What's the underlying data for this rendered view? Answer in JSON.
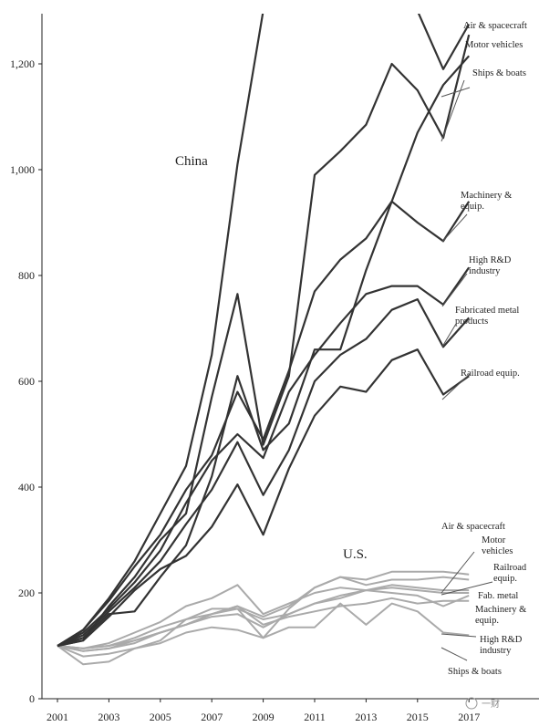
{
  "chart_data": {
    "type": "line",
    "title": "",
    "xlabel": "",
    "ylabel": "",
    "x": [
      2001,
      2002,
      2003,
      2004,
      2005,
      2006,
      2007,
      2008,
      2009,
      2010,
      2011,
      2012,
      2013,
      2014,
      2015,
      2016,
      2017
    ],
    "x_ticks": [
      "2001",
      "2003",
      "2005",
      "2007",
      "2009",
      "2011",
      "2013",
      "2015",
      "2017"
    ],
    "y_ticks": [
      "0",
      "200",
      "400",
      "600",
      "800",
      "1,000",
      "1,200"
    ],
    "xlim": [
      2001,
      2017.7
    ],
    "ylim": [
      0,
      1300
    ],
    "grid": false,
    "legend": "none",
    "groups": [
      {
        "name": "China",
        "color": "#333333",
        "series": [
          {
            "name": "Air & spacecraft",
            "values": [
              100,
              130,
              190,
              260,
              350,
              440,
              650,
              1010,
              1300,
              1300,
              1300,
              1300,
              1300,
              1300,
              1300,
              1190,
              1275
            ]
          },
          {
            "name": "Motor vehicles",
            "values": [
              100,
              110,
              175,
              230,
              300,
              350,
              570,
              765,
              480,
              610,
              990,
              1035,
              1085,
              1200,
              1150,
              1060,
              1255
            ]
          },
          {
            "name": "Ships & boats",
            "values": [
              100,
              115,
              160,
              165,
              230,
              290,
              420,
              610,
              470,
              520,
              660,
              660,
              810,
              940,
              1070,
              1160,
              1215
            ]
          },
          {
            "name": "Machinery & equip.",
            "values": [
              100,
              130,
              185,
              250,
              310,
              395,
              460,
              580,
              490,
              620,
              770,
              830,
              870,
              940,
              900,
              865,
              940
            ]
          },
          {
            "name": "High R&D industry",
            "values": [
              100,
              125,
              170,
              220,
              280,
              370,
              450,
              500,
              455,
              580,
              650,
              710,
              765,
              780,
              780,
              745,
              815
            ]
          },
          {
            "name": "Fabricated metal products",
            "values": [
              100,
              120,
              165,
              210,
              260,
              330,
              395,
              485,
              385,
              470,
              600,
              650,
              680,
              735,
              755,
              665,
              720
            ]
          },
          {
            "name": "Railroad equip.",
            "values": [
              100,
              110,
              155,
              205,
              245,
              270,
              325,
              405,
              310,
              435,
              535,
              590,
              580,
              640,
              660,
              575,
              610
            ]
          }
        ]
      },
      {
        "name": "U.S.",
        "color": "#aaaaaa",
        "series": [
          {
            "name": "Air & spacecraft",
            "values": [
              100,
              95,
              100,
              110,
              125,
              140,
              160,
              175,
              155,
              175,
              210,
              230,
              225,
              240,
              240,
              240,
              235
            ]
          },
          {
            "name": "Motor vehicles",
            "values": [
              100,
              80,
              85,
              95,
              110,
              150,
              170,
              170,
              115,
              170,
              210,
              230,
              215,
              225,
              225,
              230,
              225
            ]
          },
          {
            "name": "Railroad equip.",
            "values": [
              100,
              95,
              105,
              125,
              145,
              175,
              190,
              215,
              160,
              180,
              200,
              210,
              205,
              215,
              210,
              205,
              205
            ]
          },
          {
            "name": "Fab. metal",
            "values": [
              100,
              90,
              95,
              105,
              125,
              140,
              160,
              170,
              150,
              160,
              180,
              195,
              205,
              210,
              205,
              200,
              200
            ]
          },
          {
            "name": "Machinery & equip.",
            "values": [
              100,
              90,
              95,
              110,
              125,
              140,
              155,
              160,
              135,
              160,
              180,
              190,
              205,
              200,
              195,
              175,
              195
            ]
          },
          {
            "name": "High R&D industry",
            "values": [
              100,
              95,
              100,
              115,
              135,
              150,
              160,
              175,
              140,
              155,
              165,
              175,
              180,
              190,
              180,
              185,
              185
            ]
          },
          {
            "name": "Ships & boats",
            "values": [
              100,
              65,
              70,
              95,
              105,
              125,
              135,
              130,
              115,
              135,
              135,
              180,
              140,
              180,
              165,
              125,
              120
            ]
          }
        ]
      }
    ],
    "group_labels": {
      "china": "China",
      "us": "U.S."
    },
    "labels": {
      "china": [
        {
          "lines": [
            "Air & spacecraft"
          ]
        },
        {
          "lines": [
            "Motor vehicles"
          ]
        },
        {
          "lines": [
            "Ships & boats"
          ]
        },
        {
          "lines": [
            "Machinery &",
            "equip."
          ]
        },
        {
          "lines": [
            "High R&D",
            "industry"
          ]
        },
        {
          "lines": [
            "Fabricated metal",
            "products"
          ]
        },
        {
          "lines": [
            "Railroad equip."
          ]
        }
      ],
      "us": [
        {
          "lines": [
            "Air & spacecraft"
          ]
        },
        {
          "lines": [
            "Motor",
            "vehicles"
          ]
        },
        {
          "lines": [
            "Railroad",
            "equip."
          ]
        },
        {
          "lines": [
            "Fab. metal"
          ]
        },
        {
          "lines": [
            "Machinery &",
            "equip."
          ]
        },
        {
          "lines": [
            "High R&D",
            "industry"
          ]
        },
        {
          "lines": [
            "Ships & boats"
          ]
        }
      ]
    },
    "watermark": "一财"
  }
}
